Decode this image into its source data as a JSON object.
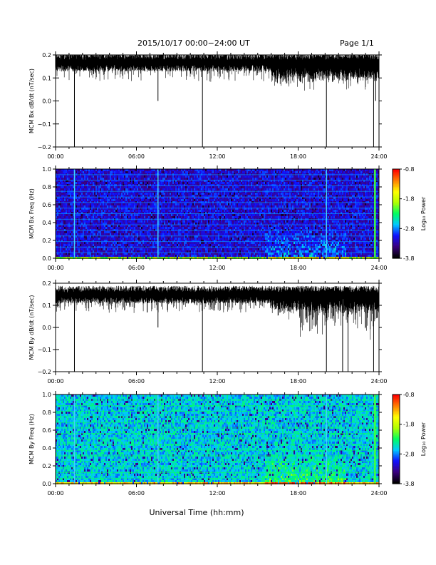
{
  "header": {
    "title": "2015/10/17  00:00−24:00 UT",
    "page": "Page 1/1"
  },
  "footer": {
    "xlabel": "Universal Time (hh:mm)"
  },
  "colors": {
    "line": "#000000",
    "cmap": [
      "#000000",
      "#3b0080",
      "#1010ff",
      "#00c8ff",
      "#00ff60",
      "#b0ff00",
      "#ffff00",
      "#ff8000",
      "#ff0000"
    ]
  },
  "chart_data": [
    {
      "type": "line",
      "ylabel": "MCM Bx dB/dt (nT/sec)",
      "xlim": [
        0,
        24
      ],
      "ylim": [
        -0.2,
        0.2
      ],
      "x_ticks": [
        "00:00",
        "06:00",
        "12:00",
        "18:00",
        "24:00"
      ],
      "y_ticks": [
        "0.2",
        "0.1",
        "0.0",
        "−0.1",
        "−0.2"
      ],
      "baseline": 0.17,
      "dips": [
        {
          "t": 1.4,
          "y": -0.2
        },
        {
          "t": 7.6,
          "y": 0.0
        },
        {
          "t": 10.9,
          "y": -0.2
        },
        {
          "t": 20.1,
          "y": -0.2
        },
        {
          "t": 23.6,
          "y": -0.2
        },
        {
          "t": 23.75,
          "y": 0.0
        }
      ]
    },
    {
      "type": "heatmap",
      "ylabel": "MCM Bx Freq (Hz)",
      "xlim": [
        0,
        24
      ],
      "ylim": [
        0,
        1.0
      ],
      "x_ticks": [
        "00:00",
        "06:00",
        "12:00",
        "18:00",
        "24:00"
      ],
      "y_ticks": [
        "1.0",
        "0.8",
        "0.6",
        "0.4",
        "0.2",
        "0.0"
      ],
      "colorbar": {
        "label": "Log₁₀ Power",
        "ticks": [
          "-0.8",
          "-1.8",
          "-2.8",
          "-3.8"
        ],
        "range": [
          -3.8,
          -0.8
        ]
      },
      "vertical_lines": [
        1.4,
        7.6,
        20.1,
        23.7
      ]
    },
    {
      "type": "line",
      "ylabel": "MCM By dB/dt (nT/sec)",
      "xlim": [
        0,
        24
      ],
      "ylim": [
        -0.2,
        0.2
      ],
      "x_ticks": [
        "00:00",
        "06:00",
        "12:00",
        "18:00",
        "24:00"
      ],
      "y_ticks": [
        "0.2",
        "0.1",
        "0.0",
        "−0.1",
        "−0.2"
      ],
      "baseline": 0.15,
      "dips": [
        {
          "t": 1.4,
          "y": -0.2
        },
        {
          "t": 7.6,
          "y": 0.0
        },
        {
          "t": 10.9,
          "y": -0.2
        },
        {
          "t": 20.1,
          "y": -0.2
        },
        {
          "t": 21.3,
          "y": -0.2
        },
        {
          "t": 21.7,
          "y": -0.2
        },
        {
          "t": 23.0,
          "y": 0.0
        },
        {
          "t": 23.6,
          "y": -0.2
        }
      ]
    },
    {
      "type": "heatmap",
      "ylabel": "MCM By Freq (Hz)",
      "xlim": [
        0,
        24
      ],
      "ylim": [
        0,
        1.0
      ],
      "x_ticks": [
        "00:00",
        "06:00",
        "12:00",
        "18:00",
        "24:00"
      ],
      "y_ticks": [
        "1.0",
        "0.8",
        "0.6",
        "0.4",
        "0.2",
        "0.0"
      ],
      "colorbar": {
        "label": "Log₁₀ Power",
        "ticks": [
          "-0.8",
          "-1.8",
          "-2.8",
          "-3.8"
        ],
        "range": [
          -3.8,
          -0.8
        ]
      },
      "vertical_lines": [
        1.4,
        7.6,
        20.1,
        23.7
      ]
    }
  ]
}
